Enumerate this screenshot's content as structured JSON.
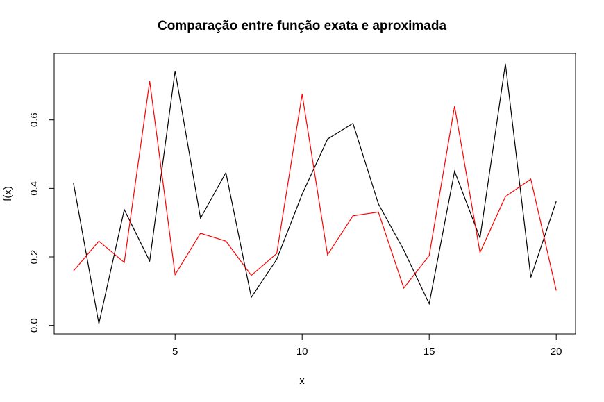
{
  "chart_data": {
    "type": "line",
    "title": "Comparação entre função exata e aproximada",
    "xlabel": "x",
    "ylabel": "f(x)",
    "x": [
      1,
      2,
      3,
      4,
      5,
      6,
      7,
      8,
      9,
      10,
      11,
      12,
      13,
      14,
      15,
      16,
      17,
      18,
      19,
      20
    ],
    "series": [
      {
        "color": "#000000",
        "values": [
          0.416,
          0.005,
          0.338,
          0.188,
          0.743,
          0.313,
          0.446,
          0.082,
          0.193,
          0.383,
          0.544,
          0.59,
          0.355,
          0.22,
          0.063,
          0.45,
          0.255,
          0.764,
          0.14,
          0.362
        ]
      },
      {
        "color": "#ff0000",
        "values": [
          0.159,
          0.246,
          0.184,
          0.713,
          0.148,
          0.269,
          0.246,
          0.146,
          0.21,
          0.675,
          0.206,
          0.32,
          0.331,
          0.109,
          0.204,
          0.64,
          0.213,
          0.376,
          0.427,
          0.102
        ]
      }
    ],
    "xlim": [
      0.24,
      20.76
    ],
    "ylim": [
      -0.025,
      0.794
    ],
    "x_ticks": [
      5,
      10,
      15,
      20
    ],
    "y_ticks": [
      0.0,
      0.2,
      0.4,
      0.6
    ],
    "x_tick_labels": [
      "5",
      "10",
      "15",
      "20"
    ],
    "y_tick_labels": [
      "0.0",
      "0.2",
      "0.4",
      "0.6"
    ],
    "grid": false,
    "legend": "none"
  }
}
